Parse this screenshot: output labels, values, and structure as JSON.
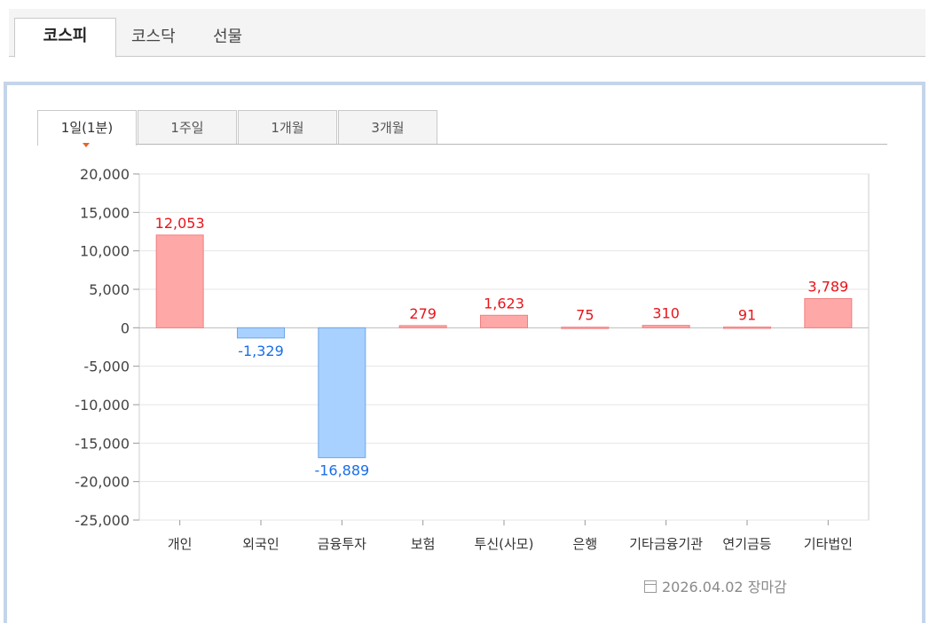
{
  "market_tabs": [
    "코스피",
    "코스닥",
    "선물"
  ],
  "period_tabs": [
    "1일(1분)",
    "1주일",
    "1개월",
    "3개월"
  ],
  "footer": {
    "date_label": "2026.04.02 장마감"
  },
  "colors": {
    "positive_fill": "#ffa8a8",
    "positive_text": "#e8141a",
    "negative_fill": "#a9d1ff",
    "negative_text": "#1a6ee8",
    "panel_border": "#c5d5e9"
  },
  "chart_data": {
    "type": "bar",
    "categories": [
      "개인",
      "외국인",
      "금융투자",
      "보험",
      "투신(사모)",
      "은행",
      "기타금융기관",
      "연기금등",
      "기타법인"
    ],
    "values": [
      12053,
      -1329,
      -16889,
      279,
      1623,
      75,
      310,
      91,
      3789
    ],
    "value_labels": [
      "12,053",
      "-1,329",
      "-16,889",
      "279",
      "1,623",
      "75",
      "310",
      "91",
      "3,789"
    ],
    "ylim": [
      -25000,
      20000
    ],
    "yticks": [
      20000,
      15000,
      10000,
      5000,
      0,
      -5000,
      -10000,
      -15000,
      -20000,
      -25000
    ],
    "ytick_labels": [
      "20,000",
      "15,000",
      "10,000",
      "5,000",
      "0",
      "-5,000",
      "-10,000",
      "-15,000",
      "-20,000",
      "-25,000"
    ],
    "grid": true,
    "title": "",
    "xlabel": "",
    "ylabel": ""
  }
}
